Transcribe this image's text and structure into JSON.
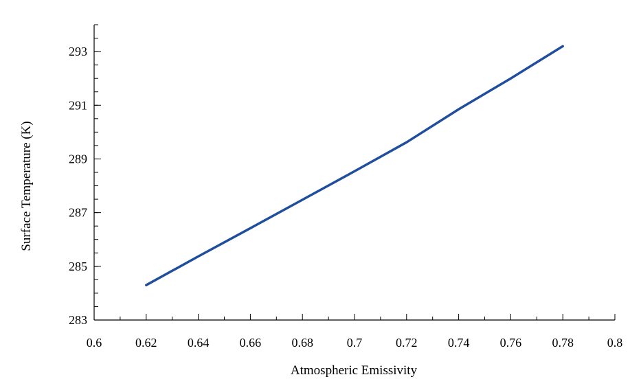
{
  "chart_data": {
    "type": "line",
    "xlabel": "Atmospheric Emissivity",
    "ylabel": "Surface Temperature (K)",
    "xlim": [
      0.6,
      0.8
    ],
    "ylim": [
      283,
      294
    ],
    "x_ticks": [
      0.6,
      0.62,
      0.64,
      0.66,
      0.68,
      0.7,
      0.72,
      0.74,
      0.76,
      0.78,
      0.8
    ],
    "x_tick_labels": [
      "0.6",
      "0.62",
      "0.64",
      "0.66",
      "0.68",
      "0.7",
      "0.72",
      "0.74",
      "0.76",
      "0.78",
      "0.8"
    ],
    "y_ticks": [
      283,
      285,
      287,
      289,
      291,
      293
    ],
    "y_tick_labels": [
      "283",
      "285",
      "287",
      "289",
      "291",
      "293"
    ],
    "grid": false,
    "series": [
      {
        "color": "#1f4e9f",
        "x": [
          0.62,
          0.64,
          0.66,
          0.68,
          0.7,
          0.72,
          0.74,
          0.76,
          0.78
        ],
        "y": [
          284.3,
          285.37,
          286.42,
          287.48,
          288.54,
          289.62,
          290.85,
          292.0,
          293.2
        ]
      }
    ]
  }
}
